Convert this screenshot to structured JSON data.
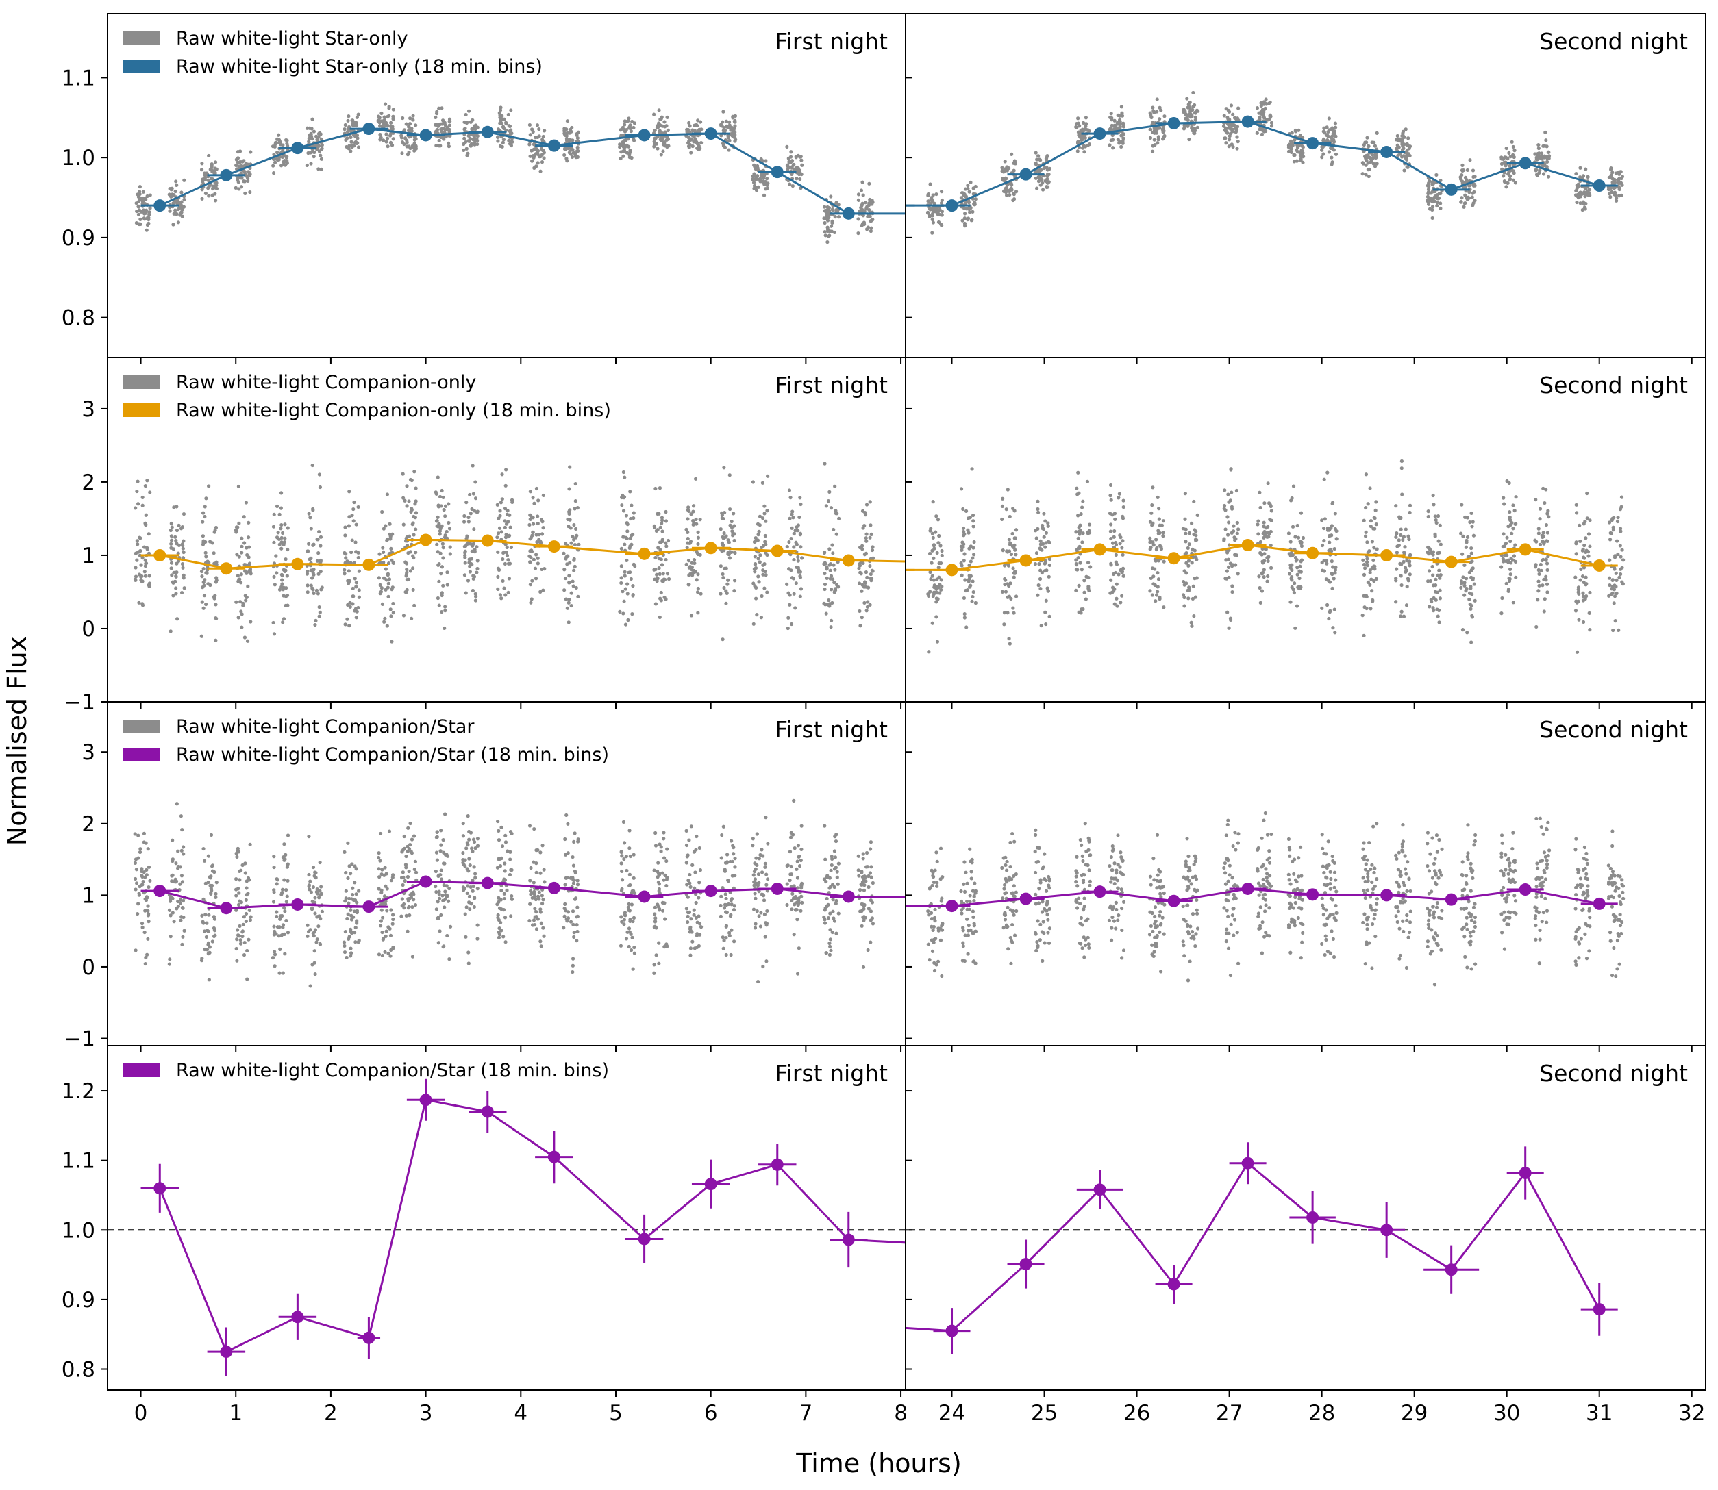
{
  "figure": {
    "ylabel": "Normalised Flux",
    "xlabel": "Time (hours)",
    "night_labels": [
      "First night",
      "Second night"
    ],
    "x_ticks_first": [
      "0",
      "1",
      "2",
      "3",
      "4",
      "5",
      "6",
      "7",
      "8"
    ],
    "x_ticks_second": [
      "24",
      "25",
      "26",
      "27",
      "28",
      "29",
      "30",
      "31",
      "32"
    ],
    "colors": {
      "raw": "#8c8c8c",
      "star": "#2a6f9b",
      "companion": "#e59c00",
      "ratio": "#8c12a8"
    }
  },
  "chart_data": [
    {
      "type": "scatter",
      "panel": "star-only",
      "ylim": [
        0.75,
        1.18
      ],
      "yticks": [
        "0.8",
        "0.9",
        "1.0",
        "1.1"
      ],
      "legend": [
        "Raw white-light Star-only",
        "Raw white-light Star-only (18 min. bins)"
      ],
      "raw_spread": 0.02,
      "first_night": {
        "x": [
          0.2,
          0.9,
          1.65,
          2.4,
          3.0,
          3.65,
          4.35,
          5.3,
          6.0,
          6.7,
          7.45,
          8.3
        ],
        "y": [
          0.94,
          0.978,
          1.012,
          1.036,
          1.028,
          1.032,
          1.015,
          1.028,
          1.03,
          0.982,
          0.93,
          0.93
        ]
      },
      "second_night": {
        "x": [
          23.4,
          24.0,
          24.8,
          25.6,
          26.4,
          27.2,
          27.9,
          28.7,
          29.4,
          30.2,
          31.0
        ],
        "y": [
          0.94,
          0.94,
          0.979,
          1.03,
          1.043,
          1.045,
          1.018,
          1.007,
          0.96,
          0.993,
          0.965
        ]
      }
    },
    {
      "type": "scatter",
      "panel": "companion-only",
      "ylim": [
        -1,
        3.7
      ],
      "yticks": [
        "−1",
        "0",
        "1",
        "2",
        "3"
      ],
      "legend": [
        "Raw white-light Companion-only",
        "Raw white-light Companion-only (18 min. bins)"
      ],
      "raw_spread": 0.75,
      "first_night": {
        "x": [
          0.2,
          0.9,
          1.65,
          2.4,
          3.0,
          3.65,
          4.35,
          5.3,
          6.0,
          6.7,
          7.45,
          8.3
        ],
        "y": [
          1.0,
          0.82,
          0.88,
          0.87,
          1.21,
          1.2,
          1.12,
          1.02,
          1.1,
          1.06,
          0.93,
          0.91
        ]
      },
      "second_night": {
        "x": [
          23.4,
          24.0,
          24.8,
          25.6,
          26.4,
          27.2,
          27.9,
          28.7,
          29.4,
          30.2,
          31.0
        ],
        "y": [
          0.8,
          0.8,
          0.93,
          1.08,
          0.96,
          1.14,
          1.03,
          1.0,
          0.91,
          1.08,
          0.86
        ]
      }
    },
    {
      "type": "scatter",
      "panel": "companion-over-star",
      "ylim": [
        -1.1,
        3.7
      ],
      "yticks": [
        "−1",
        "0",
        "1",
        "2",
        "3"
      ],
      "legend": [
        "Raw white-light Companion/Star",
        "Raw white-light Companion/Star (18 min. bins)"
      ],
      "raw_spread": 0.75,
      "first_night": {
        "x": [
          0.2,
          0.9,
          1.65,
          2.4,
          3.0,
          3.65,
          4.35,
          5.3,
          6.0,
          6.7,
          7.45,
          8.3
        ],
        "y": [
          1.06,
          0.82,
          0.87,
          0.84,
          1.19,
          1.17,
          1.1,
          0.98,
          1.06,
          1.09,
          0.98,
          0.98
        ]
      },
      "second_night": {
        "x": [
          23.4,
          24.0,
          24.8,
          25.6,
          26.4,
          27.2,
          27.9,
          28.7,
          29.4,
          30.2,
          31.0
        ],
        "y": [
          0.85,
          0.85,
          0.95,
          1.05,
          0.92,
          1.09,
          1.01,
          1.0,
          0.94,
          1.08,
          0.88
        ]
      }
    },
    {
      "type": "line",
      "panel": "companion-over-star-binned",
      "ylim": [
        0.77,
        1.265
      ],
      "yticks": [
        "0.8",
        "0.9",
        "1.0",
        "1.1",
        "1.2"
      ],
      "legend": [
        "Raw white-light Companion/Star (18 min. bins)"
      ],
      "reference_line": 1.0,
      "first_night": {
        "x": [
          0.2,
          0.9,
          1.65,
          2.4,
          3.0,
          3.65,
          4.35,
          5.3,
          6.0,
          6.7,
          7.45,
          8.3
        ],
        "y": [
          1.06,
          0.825,
          0.875,
          0.845,
          1.187,
          1.17,
          1.105,
          0.987,
          1.066,
          1.094,
          0.986,
          0.98
        ],
        "yerr": [
          0.035,
          0.035,
          0.033,
          0.03,
          0.03,
          0.03,
          0.038,
          0.035,
          0.035,
          0.03,
          0.04,
          0.0
        ],
        "xerr": [
          0.2,
          0.2,
          0.2,
          0.12,
          0.2,
          0.2,
          0.2,
          0.2,
          0.2,
          0.2,
          0.2,
          0.0
        ]
      },
      "second_night": {
        "x": [
          23.4,
          24.0,
          24.8,
          25.6,
          26.4,
          27.2,
          27.9,
          28.7,
          29.4,
          30.2,
          31.0
        ],
        "y": [
          0.86,
          0.855,
          0.951,
          1.058,
          0.922,
          1.096,
          1.018,
          1.0,
          0.943,
          1.082,
          0.886
        ],
        "yerr": [
          0.0,
          0.033,
          0.035,
          0.028,
          0.028,
          0.03,
          0.038,
          0.04,
          0.035,
          0.038,
          0.038
        ],
        "xerr": [
          0.0,
          0.2,
          0.2,
          0.25,
          0.2,
          0.2,
          0.25,
          0.2,
          0.3,
          0.2,
          0.2
        ]
      }
    }
  ]
}
